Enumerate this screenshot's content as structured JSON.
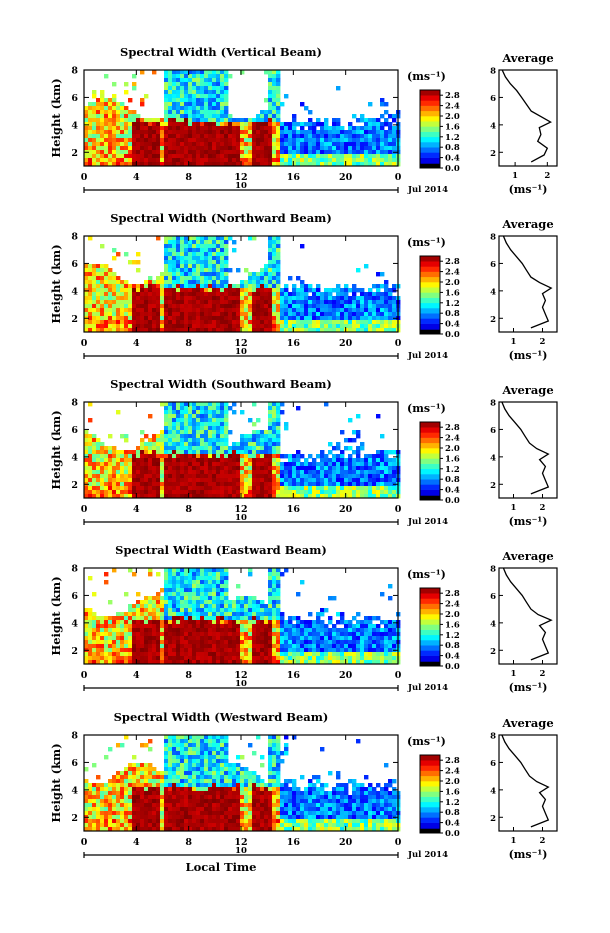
{
  "chart_data": [
    {
      "type": "heatmap",
      "title": "Spectral Width (Vertical Beam)",
      "ylabel": "Height (km)",
      "xticks": [
        "0",
        "4",
        "8",
        "12",
        "16",
        "20",
        "0"
      ],
      "yticks": [
        "2",
        "4",
        "6",
        "8"
      ],
      "xlim": [
        0,
        24
      ],
      "ylim": [
        1,
        8
      ],
      "date_label": "10",
      "month_label": "Jul 2014",
      "colorbar": {
        "unit": "(ms⁻¹)",
        "ticks": [
          "0.0",
          "0.4",
          "0.8",
          "1.2",
          "1.6",
          "2.0",
          "2.4",
          "2.8"
        ],
        "range": [
          0,
          3.0
        ]
      },
      "average": {
        "title": "Average",
        "xticks": [
          "1",
          "2"
        ],
        "xlim": [
          0.5,
          2.3
        ],
        "yticks": [
          "2",
          "4",
          "6",
          "8"
        ],
        "ylim": [
          1,
          8
        ],
        "xlabel": "(ms⁻¹)",
        "profile": [
          [
            1.5,
            1.3
          ],
          [
            1.9,
            1.8
          ],
          [
            2.0,
            2.3
          ],
          [
            1.7,
            2.8
          ],
          [
            1.8,
            3.3
          ],
          [
            1.75,
            3.8
          ],
          [
            2.1,
            4.2
          ],
          [
            1.8,
            4.6
          ],
          [
            1.5,
            5.0
          ],
          [
            1.35,
            5.5
          ],
          [
            1.2,
            6.0
          ],
          [
            1.05,
            6.5
          ],
          [
            0.85,
            7.0
          ],
          [
            0.7,
            7.5
          ],
          [
            0.6,
            8.0
          ]
        ]
      }
    },
    {
      "type": "heatmap",
      "title": "Spectral Width (Northward Beam)",
      "ylabel": "Height (km)",
      "xticks": [
        "0",
        "4",
        "8",
        "12",
        "16",
        "20",
        "0"
      ],
      "yticks": [
        "2",
        "4",
        "6",
        "8"
      ],
      "xlim": [
        0,
        24
      ],
      "ylim": [
        1,
        8
      ],
      "date_label": "10",
      "month_label": "Jul 2014",
      "colorbar": {
        "unit": "(ms⁻¹)",
        "ticks": [
          "0.0",
          "0.4",
          "0.8",
          "1.2",
          "1.6",
          "2.0",
          "2.4",
          "2.8"
        ],
        "range": [
          0,
          3.0
        ]
      },
      "average": {
        "title": "Average",
        "xticks": [
          "1",
          "2"
        ],
        "xlim": [
          0.5,
          2.5
        ],
        "yticks": [
          "2",
          "4",
          "6",
          "8"
        ],
        "ylim": [
          1,
          8
        ],
        "xlabel": "(ms⁻¹)",
        "profile": [
          [
            1.6,
            1.3
          ],
          [
            2.2,
            1.8
          ],
          [
            2.1,
            2.3
          ],
          [
            2.0,
            2.8
          ],
          [
            2.1,
            3.3
          ],
          [
            2.0,
            3.8
          ],
          [
            2.3,
            4.2
          ],
          [
            1.9,
            4.6
          ],
          [
            1.6,
            5.0
          ],
          [
            1.45,
            5.5
          ],
          [
            1.3,
            6.0
          ],
          [
            1.1,
            6.5
          ],
          [
            0.9,
            7.0
          ],
          [
            0.75,
            7.5
          ],
          [
            0.65,
            8.0
          ]
        ]
      }
    },
    {
      "type": "heatmap",
      "title": "Spectral Width (Southward Beam)",
      "ylabel": "Height (km)",
      "xticks": [
        "0",
        "4",
        "8",
        "12",
        "16",
        "20",
        "0"
      ],
      "yticks": [
        "2",
        "4",
        "6",
        "8"
      ],
      "xlim": [
        0,
        24
      ],
      "ylim": [
        1,
        8
      ],
      "date_label": "10",
      "month_label": "Jul 2014",
      "colorbar": {
        "unit": "(ms⁻¹)",
        "ticks": [
          "0.0",
          "0.4",
          "0.8",
          "1.2",
          "1.6",
          "2.0",
          "2.4",
          "2.8"
        ],
        "range": [
          0,
          3.0
        ]
      },
      "average": {
        "title": "Average",
        "xticks": [
          "1",
          "2"
        ],
        "xlim": [
          0.5,
          2.5
        ],
        "yticks": [
          "2",
          "4",
          "6",
          "8"
        ],
        "ylim": [
          1,
          8
        ],
        "xlabel": "(ms⁻¹)",
        "profile": [
          [
            1.6,
            1.3
          ],
          [
            2.2,
            1.8
          ],
          [
            2.1,
            2.3
          ],
          [
            2.0,
            2.8
          ],
          [
            2.1,
            3.3
          ],
          [
            1.9,
            3.8
          ],
          [
            2.2,
            4.2
          ],
          [
            1.8,
            4.6
          ],
          [
            1.55,
            5.0
          ],
          [
            1.4,
            5.5
          ],
          [
            1.25,
            6.0
          ],
          [
            1.05,
            6.5
          ],
          [
            0.85,
            7.0
          ],
          [
            0.7,
            7.5
          ],
          [
            0.6,
            8.0
          ]
        ]
      }
    },
    {
      "type": "heatmap",
      "title": "Spectral Width (Eastward Beam)",
      "ylabel": "Height (km)",
      "xticks": [
        "0",
        "4",
        "8",
        "12",
        "16",
        "20",
        "0"
      ],
      "yticks": [
        "2",
        "4",
        "6",
        "8"
      ],
      "xlim": [
        0,
        24
      ],
      "ylim": [
        1,
        8
      ],
      "date_label": "10",
      "month_label": "Jul 2014",
      "colorbar": {
        "unit": "(ms⁻¹)",
        "ticks": [
          "0.0",
          "0.4",
          "0.8",
          "1.2",
          "1.6",
          "2.0",
          "2.4",
          "2.8"
        ],
        "range": [
          0,
          3.0
        ]
      },
      "average": {
        "title": "Average",
        "xticks": [
          "1",
          "2"
        ],
        "xlim": [
          0.5,
          2.5
        ],
        "yticks": [
          "2",
          "4",
          "6",
          "8"
        ],
        "ylim": [
          1,
          8
        ],
        "xlabel": "(ms⁻¹)",
        "profile": [
          [
            1.6,
            1.3
          ],
          [
            2.2,
            1.8
          ],
          [
            2.1,
            2.3
          ],
          [
            2.0,
            2.8
          ],
          [
            2.1,
            3.3
          ],
          [
            1.9,
            3.8
          ],
          [
            2.3,
            4.2
          ],
          [
            1.85,
            4.6
          ],
          [
            1.6,
            5.0
          ],
          [
            1.45,
            5.5
          ],
          [
            1.3,
            6.0
          ],
          [
            1.1,
            6.5
          ],
          [
            0.9,
            7.0
          ],
          [
            0.75,
            7.5
          ],
          [
            0.65,
            8.0
          ]
        ]
      }
    },
    {
      "type": "heatmap",
      "title": "Spectral Width (Westward Beam)",
      "ylabel": "Height (km)",
      "xticks": [
        "0",
        "4",
        "8",
        "12",
        "16",
        "20",
        "0"
      ],
      "yticks": [
        "2",
        "4",
        "6",
        "8"
      ],
      "xlim": [
        0,
        24
      ],
      "ylim": [
        1,
        8
      ],
      "date_label": "10",
      "month_label": "Jul 2014",
      "xlabel": "Local Time",
      "colorbar": {
        "unit": "(ms⁻¹)",
        "ticks": [
          "0.0",
          "0.4",
          "0.8",
          "1.2",
          "1.6",
          "2.0",
          "2.4",
          "2.8"
        ],
        "range": [
          0,
          3.0
        ]
      },
      "average": {
        "title": "Average",
        "xticks": [
          "1",
          "2"
        ],
        "xlim": [
          0.5,
          2.5
        ],
        "yticks": [
          "2",
          "4",
          "6",
          "8"
        ],
        "ylim": [
          1,
          8
        ],
        "xlabel": "(ms⁻¹)",
        "profile": [
          [
            1.6,
            1.3
          ],
          [
            2.2,
            1.8
          ],
          [
            2.1,
            2.3
          ],
          [
            2.0,
            2.8
          ],
          [
            2.1,
            3.3
          ],
          [
            1.9,
            3.8
          ],
          [
            2.2,
            4.2
          ],
          [
            1.8,
            4.6
          ],
          [
            1.55,
            5.0
          ],
          [
            1.4,
            5.5
          ],
          [
            1.25,
            6.0
          ],
          [
            1.05,
            6.5
          ],
          [
            0.85,
            7.0
          ],
          [
            0.7,
            7.5
          ],
          [
            0.6,
            8.0
          ]
        ]
      }
    }
  ]
}
